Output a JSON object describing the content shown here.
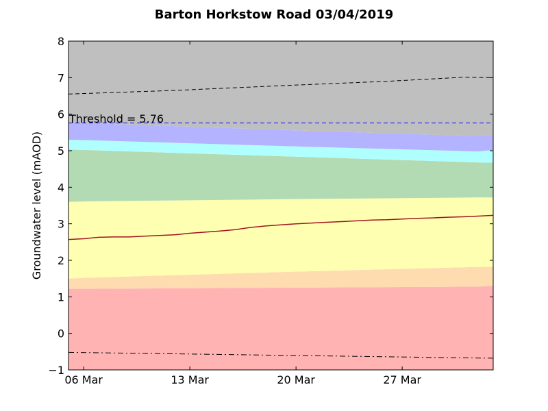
{
  "chart_data": {
    "type": "area",
    "title": "Barton Horkstow Road 03/04/2019",
    "xlabel": "",
    "ylabel": "Groundwater level (mAOD)",
    "ylim": [
      -1,
      8
    ],
    "xlim": [
      "2019-03-05",
      "2019-04-02"
    ],
    "yticks": [
      -1,
      0,
      1,
      2,
      3,
      4,
      5,
      6,
      7,
      8
    ],
    "ytick_labels": [
      "−1",
      "0",
      "1",
      "2",
      "3",
      "4",
      "5",
      "6",
      "7",
      "8"
    ],
    "xticks": [
      {
        "date": "2019-03-06",
        "label": "06 Mar"
      },
      {
        "date": "2019-03-13",
        "label": "13 Mar"
      },
      {
        "date": "2019-03-20",
        "label": "20 Mar"
      },
      {
        "date": "2019-03-27",
        "label": "27 Mar"
      }
    ],
    "band_dates": [
      "2019-03-05",
      "2019-03-06",
      "2019-03-19",
      "2019-04-01",
      "2019-04-02"
    ],
    "bands": [
      {
        "color": "#ffb3b3",
        "lower": [
          -1,
          -1,
          -1,
          -1,
          -1
        ],
        "upper": [
          1.22,
          1.22,
          1.25,
          1.28,
          1.3
        ]
      },
      {
        "color": "#ffdcb0",
        "lower": [
          1.22,
          1.22,
          1.25,
          1.28,
          1.3
        ],
        "upper": [
          1.5,
          1.52,
          1.68,
          1.82,
          1.82
        ]
      },
      {
        "color": "#ffffb2",
        "lower": [
          1.5,
          1.52,
          1.68,
          1.82,
          1.82
        ],
        "upper": [
          3.6,
          3.61,
          3.67,
          3.72,
          3.72
        ]
      },
      {
        "color": "#b3dbb3",
        "lower": [
          3.6,
          3.61,
          3.67,
          3.72,
          3.72
        ],
        "upper": [
          5.03,
          5.02,
          4.85,
          4.68,
          4.67
        ]
      },
      {
        "color": "#b0ffff",
        "lower": [
          5.03,
          5.02,
          4.85,
          4.68,
          4.67
        ],
        "upper": [
          5.3,
          5.29,
          5.13,
          4.98,
          5.02
        ]
      },
      {
        "color": "#b3b3ff",
        "lower": [
          5.3,
          5.29,
          5.13,
          4.98,
          5.02
        ],
        "upper": [
          5.76,
          5.76,
          5.57,
          5.4,
          5.44
        ]
      },
      {
        "color": "#bfbfbf",
        "lower": [
          5.76,
          5.76,
          5.57,
          5.4,
          5.44
        ],
        "upper": [
          8,
          8,
          8,
          8,
          8
        ]
      }
    ],
    "series": [
      {
        "color": "#a0141e",
        "style": "solid",
        "x": [
          "2019-03-05",
          "2019-03-06",
          "2019-03-07",
          "2019-03-08",
          "2019-03-09",
          "2019-03-10",
          "2019-03-11",
          "2019-03-12",
          "2019-03-13",
          "2019-03-14",
          "2019-03-15",
          "2019-03-16",
          "2019-03-17",
          "2019-03-18",
          "2019-03-19",
          "2019-03-20",
          "2019-03-21",
          "2019-03-22",
          "2019-03-23",
          "2019-03-24",
          "2019-03-25",
          "2019-03-26",
          "2019-03-27",
          "2019-03-28",
          "2019-03-29",
          "2019-03-30",
          "2019-03-31",
          "2019-04-01",
          "2019-04-02"
        ],
        "y": [
          2.57,
          2.59,
          2.63,
          2.64,
          2.64,
          2.66,
          2.68,
          2.7,
          2.74,
          2.77,
          2.8,
          2.84,
          2.9,
          2.94,
          2.97,
          3.0,
          3.02,
          3.04,
          3.06,
          3.08,
          3.1,
          3.11,
          3.13,
          3.15,
          3.16,
          3.18,
          3.19,
          3.21,
          3.23
        ]
      },
      {
        "color": "#000000",
        "style": "dashed",
        "x": [
          "2019-03-05",
          "2019-03-12",
          "2019-03-19",
          "2019-03-26",
          "2019-03-31",
          "2019-04-02"
        ],
        "y": [
          6.55,
          6.65,
          6.78,
          6.9,
          7.01,
          7.0
        ]
      },
      {
        "color": "#000000",
        "style": "dashdot",
        "x": [
          "2019-03-05",
          "2019-03-12",
          "2019-03-19",
          "2019-03-26",
          "2019-03-31",
          "2019-04-02"
        ],
        "y": [
          -0.52,
          -0.56,
          -0.6,
          -0.64,
          -0.67,
          -0.68
        ]
      }
    ],
    "threshold": {
      "value": 5.76,
      "color": "#0000ff",
      "label": "Threshold = 5.76"
    },
    "grid": false,
    "legend": "none"
  }
}
